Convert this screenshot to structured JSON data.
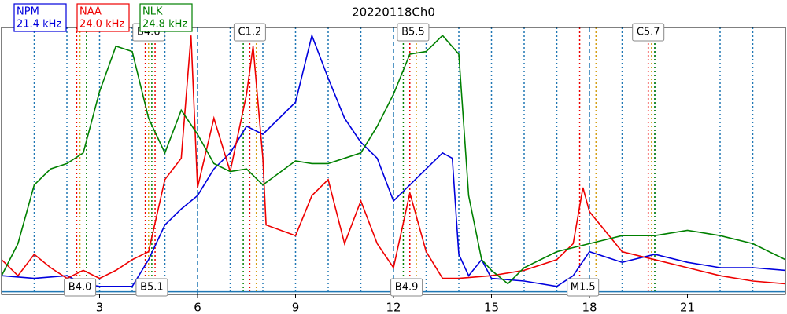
{
  "chart_data": {
    "type": "line",
    "title": "20220118Ch0",
    "xlim": [
      0,
      24
    ],
    "ylim": [
      0,
      100
    ],
    "xticks": [
      3,
      6,
      9,
      12,
      15,
      18,
      21
    ],
    "hline": {
      "value": 1,
      "color": "#1f77b4"
    },
    "series": [
      {
        "name": "NPM",
        "frequency": "21.4 kHz",
        "color": "#0000dd",
        "x": [
          0,
          1,
          2,
          2.5,
          3,
          4,
          4.5,
          5,
          5.5,
          6,
          6.5,
          7,
          7.5,
          8,
          9,
          9.5,
          10,
          10.5,
          11,
          11.5,
          12,
          12.5,
          13,
          13.5,
          13.8,
          14,
          14.3,
          14.7,
          15,
          16,
          17,
          17.5,
          18,
          19,
          20,
          21,
          22,
          23,
          24
        ],
        "values": [
          7,
          6,
          7,
          4,
          3,
          3,
          13,
          26,
          32,
          37,
          47,
          53,
          63,
          60,
          72,
          97,
          81,
          66,
          57,
          51,
          35,
          41,
          47,
          53,
          51,
          15,
          7,
          13,
          6,
          5,
          3,
          7,
          16,
          12,
          15,
          12,
          10,
          10,
          9
        ]
      },
      {
        "name": "NAA",
        "frequency": "24.0 kHz",
        "color": "#ee0000",
        "x": [
          0,
          0.5,
          1,
          1.5,
          2,
          2.5,
          3,
          3.5,
          4,
          4.5,
          5,
          5.5,
          5.8,
          6,
          6.5,
          7,
          7.5,
          7.7,
          8,
          8.1,
          9,
          9.5,
          10,
          10.5,
          11,
          11.5,
          12,
          12.5,
          13,
          13.5,
          14,
          15,
          16,
          17,
          17.5,
          17.8,
          18,
          19,
          20,
          21,
          22,
          23,
          24
        ],
        "values": [
          13,
          7,
          15,
          10,
          6,
          9,
          6,
          9,
          13,
          16,
          43,
          51,
          97,
          40,
          66,
          46,
          75,
          93,
          51,
          26,
          22,
          37,
          43,
          19,
          35,
          19,
          10,
          38,
          16,
          6,
          6,
          7,
          9,
          13,
          19,
          40,
          31,
          16,
          13,
          10,
          7,
          5,
          4
        ]
      },
      {
        "name": "NLK",
        "frequency": "24.8 kHz",
        "color": "#008000",
        "x": [
          0,
          0.5,
          1,
          1.5,
          2,
          2.5,
          3,
          3.5,
          4,
          4.5,
          5,
          5.5,
          6,
          6.5,
          7,
          7.5,
          8,
          9,
          9.5,
          10,
          11,
          11.5,
          12,
          12.5,
          13,
          13.5,
          14,
          14.3,
          14.7,
          15,
          15.5,
          16,
          17,
          18,
          19,
          20,
          21,
          22,
          23,
          24
        ],
        "values": [
          7,
          19,
          41,
          47,
          49,
          53,
          76,
          93,
          91,
          66,
          53,
          69,
          60,
          49,
          46,
          47,
          41,
          50,
          49,
          49,
          53,
          63,
          75,
          90,
          91,
          97,
          90,
          37,
          13,
          9,
          4,
          10,
          16,
          19,
          22,
          22,
          24,
          22,
          19,
          13
        ]
      }
    ],
    "vlines": [
      {
        "x": 1,
        "color": "#1f77b4",
        "style": "dotted"
      },
      {
        "x": 2,
        "color": "#1f77b4",
        "style": "dotted"
      },
      {
        "x": 3,
        "color": "#1f77b4",
        "style": "dotted"
      },
      {
        "x": 4,
        "color": "#1f77b4",
        "style": "dotted"
      },
      {
        "x": 5,
        "color": "#1f77b4",
        "style": "dotted"
      },
      {
        "x": 6,
        "color": "#1f77b4",
        "style": "dashed"
      },
      {
        "x": 7,
        "color": "#1f77b4",
        "style": "dotted"
      },
      {
        "x": 8,
        "color": "#1f77b4",
        "style": "dotted"
      },
      {
        "x": 9,
        "color": "#1f77b4",
        "style": "dotted"
      },
      {
        "x": 10,
        "color": "#1f77b4",
        "style": "dotted"
      },
      {
        "x": 11,
        "color": "#1f77b4",
        "style": "dotted"
      },
      {
        "x": 12,
        "color": "#1f77b4",
        "style": "dashed"
      },
      {
        "x": 13,
        "color": "#1f77b4",
        "style": "dotted"
      },
      {
        "x": 14,
        "color": "#1f77b4",
        "style": "dotted"
      },
      {
        "x": 15,
        "color": "#1f77b4",
        "style": "dotted"
      },
      {
        "x": 16,
        "color": "#1f77b4",
        "style": "dotted"
      },
      {
        "x": 17,
        "color": "#1f77b4",
        "style": "dotted"
      },
      {
        "x": 18,
        "color": "#1f77b4",
        "style": "dashed"
      },
      {
        "x": 19,
        "color": "#1f77b4",
        "style": "dotted"
      },
      {
        "x": 20,
        "color": "#1f77b4",
        "style": "dotted"
      },
      {
        "x": 22,
        "color": "#1f77b4",
        "style": "dotted"
      },
      {
        "x": 23,
        "color": "#1f77b4",
        "style": "dotted"
      },
      {
        "x": 2.3,
        "color": "#ee0000",
        "style": "dotted"
      },
      {
        "x": 2.4,
        "color": "#d4a017",
        "style": "dotted"
      },
      {
        "x": 2.6,
        "color": "#008000",
        "style": "dotted"
      },
      {
        "x": 4.4,
        "color": "#ee0000",
        "style": "dotted"
      },
      {
        "x": 4.5,
        "color": "#d4a017",
        "style": "dotted"
      },
      {
        "x": 4.6,
        "color": "#008000",
        "style": "dotted"
      },
      {
        "x": 4.7,
        "color": "#ee0000",
        "style": "dotted"
      },
      {
        "x": 7.4,
        "color": "#008000",
        "style": "dotted"
      },
      {
        "x": 7.6,
        "color": "#ee0000",
        "style": "dotted"
      },
      {
        "x": 7.8,
        "color": "#d4a017",
        "style": "dotted"
      },
      {
        "x": 12.3,
        "color": "#008000",
        "style": "dotted"
      },
      {
        "x": 12.5,
        "color": "#ee0000",
        "style": "dotted"
      },
      {
        "x": 12.7,
        "color": "#d4a017",
        "style": "dotted"
      },
      {
        "x": 17.7,
        "color": "#ee0000",
        "style": "dotted"
      },
      {
        "x": 18.2,
        "color": "#d4a017",
        "style": "dotted"
      },
      {
        "x": 19.8,
        "color": "#ee0000",
        "style": "dotted"
      },
      {
        "x": 19.9,
        "color": "#d4a017",
        "style": "dotted"
      },
      {
        "x": 20.0,
        "color": "#008000",
        "style": "dotted"
      }
    ],
    "annotations": [
      {
        "text": "B4.6",
        "x": 4.5,
        "position": "top"
      },
      {
        "text": "C1.2",
        "x": 7.6,
        "position": "top"
      },
      {
        "text": "B5.5",
        "x": 12.6,
        "position": "top"
      },
      {
        "text": "C5.7",
        "x": 19.8,
        "position": "top"
      },
      {
        "text": "B4.0",
        "x": 2.4,
        "position": "bottom"
      },
      {
        "text": "B5.1",
        "x": 4.6,
        "position": "bottom"
      },
      {
        "text": "B4.9",
        "x": 12.4,
        "position": "bottom"
      },
      {
        "text": "M1.5",
        "x": 17.8,
        "position": "bottom"
      }
    ]
  }
}
